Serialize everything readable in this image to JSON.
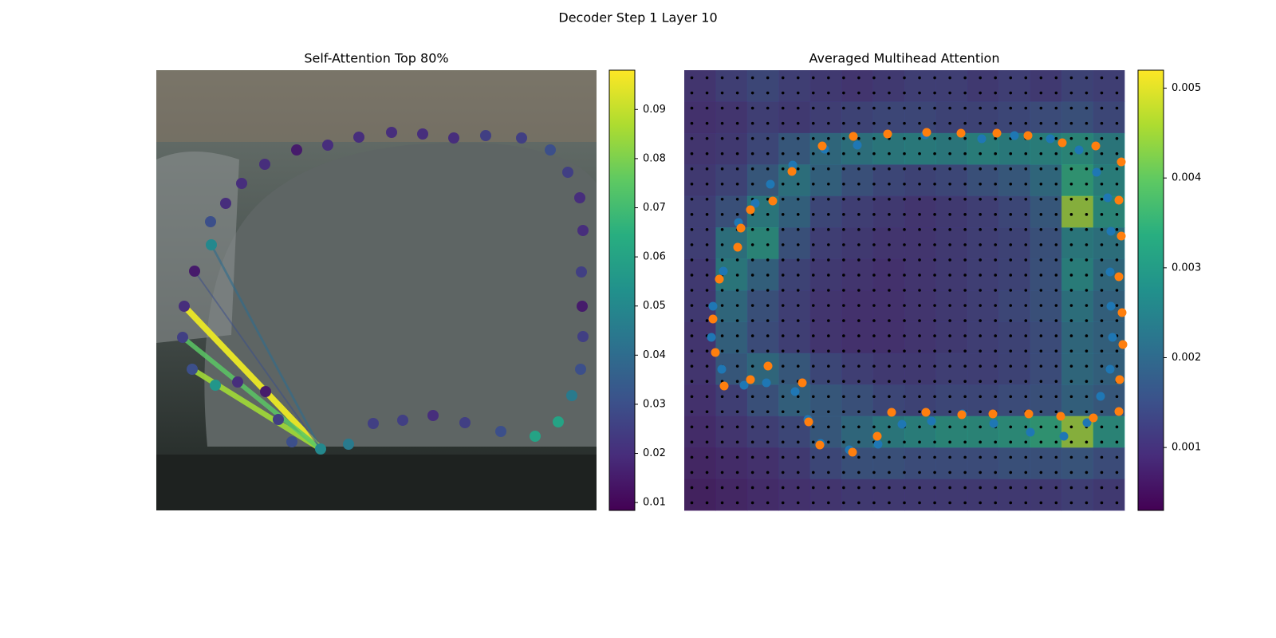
{
  "title": "Decoder Step 1 Layer 10",
  "chart_data": [
    {
      "type": "scatter",
      "title": "Self-Attention Top 80%",
      "xlim": [
        0,
        552
      ],
      "ylim": [
        552,
        0
      ],
      "x": [
        68,
        69,
        48,
        35,
        33,
        45,
        74,
        102,
        137,
        153,
        170,
        206,
        241,
        272,
        309,
        347,
        387,
        432,
        475,
        504,
        521,
        532,
        535,
        534,
        533,
        535,
        531,
        516,
        494,
        458,
        413,
        373,
        334,
        295,
        254,
        215,
        176,
        136,
        107,
        87
      ],
      "y": [
        190,
        219,
        252,
        296,
        335,
        375,
        395,
        391,
        403,
        438,
        466,
        475,
        469,
        443,
        439,
        433,
        442,
        453,
        459,
        441,
        408,
        375,
        334,
        296,
        253,
        201,
        160,
        128,
        100,
        85,
        82,
        85,
        80,
        78,
        84,
        94,
        100,
        118,
        142,
        167
      ],
      "values": [
        0.03,
        0.05,
        0.015,
        0.02,
        0.025,
        0.03,
        0.055,
        0.02,
        0.015,
        0.025,
        0.03,
        0.05,
        0.045,
        0.025,
        0.025,
        0.02,
        0.025,
        0.03,
        0.06,
        0.06,
        0.045,
        0.03,
        0.025,
        0.015,
        0.025,
        0.02,
        0.02,
        0.025,
        0.03,
        0.025,
        0.025,
        0.02,
        0.02,
        0.02,
        0.02,
        0.02,
        0.015,
        0.02,
        0.02,
        0.02
      ],
      "lines": {
        "source": 11,
        "targets": [
          3,
          5,
          4,
          1,
          2
        ],
        "values": [
          0.095,
          0.085,
          0.075,
          0.04,
          0.03
        ]
      },
      "colorbar": {
        "clim": [
          0.0084,
          0.098
        ],
        "ticks": [
          0.01,
          0.02,
          0.03,
          0.04,
          0.05,
          0.06,
          0.07,
          0.08,
          0.09
        ]
      }
    },
    {
      "type": "heatmap",
      "title": "Averaged Multihead Attention",
      "xlim": [
        0,
        552
      ],
      "ylim": [
        552,
        0
      ],
      "z": [
        [
          0.001,
          0.0012,
          0.0014,
          0.0012,
          0.0011,
          0.001,
          0.0011,
          0.0012,
          0.0012,
          0.0011,
          0.0012,
          0.0011,
          0.0013,
          0.0012
        ],
        [
          0.0009,
          0.001,
          0.0012,
          0.0011,
          0.0012,
          0.0013,
          0.0014,
          0.0014,
          0.0013,
          0.0013,
          0.0014,
          0.0015,
          0.0016,
          0.0014
        ],
        [
          0.001,
          0.0011,
          0.0014,
          0.0018,
          0.0022,
          0.0024,
          0.0026,
          0.0027,
          0.0026,
          0.0028,
          0.0027,
          0.0028,
          0.003,
          0.0026
        ],
        [
          0.0011,
          0.0013,
          0.0018,
          0.0024,
          0.002,
          0.0016,
          0.0014,
          0.0013,
          0.0014,
          0.0016,
          0.0018,
          0.0022,
          0.0034,
          0.0028
        ],
        [
          0.0012,
          0.0016,
          0.0026,
          0.002,
          0.0014,
          0.0012,
          0.0011,
          0.001,
          0.0011,
          0.0012,
          0.0014,
          0.0018,
          0.0045,
          0.003
        ],
        [
          0.0012,
          0.0024,
          0.003,
          0.0016,
          0.0012,
          0.0011,
          0.001,
          0.001,
          0.0011,
          0.0012,
          0.0013,
          0.0016,
          0.0026,
          0.0024
        ],
        [
          0.0011,
          0.0026,
          0.002,
          0.0013,
          0.0011,
          0.001,
          0.0009,
          0.001,
          0.0011,
          0.0012,
          0.0013,
          0.0016,
          0.0028,
          0.0022
        ],
        [
          0.0011,
          0.0022,
          0.0016,
          0.0012,
          0.001,
          0.0009,
          0.0009,
          0.001,
          0.0011,
          0.0012,
          0.0014,
          0.0016,
          0.0024,
          0.002
        ],
        [
          0.001,
          0.002,
          0.0015,
          0.0012,
          0.001,
          0.0009,
          0.0009,
          0.001,
          0.0011,
          0.0012,
          0.0013,
          0.0015,
          0.0022,
          0.002
        ],
        [
          0.001,
          0.0018,
          0.0022,
          0.0018,
          0.0014,
          0.0012,
          0.0011,
          0.0011,
          0.0012,
          0.0012,
          0.0013,
          0.0015,
          0.0022,
          0.002
        ],
        [
          0.0009,
          0.0012,
          0.0016,
          0.002,
          0.0018,
          0.0016,
          0.0014,
          0.0013,
          0.0014,
          0.0014,
          0.0015,
          0.0016,
          0.002,
          0.0018
        ],
        [
          0.0008,
          0.001,
          0.0012,
          0.0014,
          0.0018,
          0.0022,
          0.0026,
          0.0028,
          0.003,
          0.003,
          0.0031,
          0.0034,
          0.0045,
          0.003
        ],
        [
          0.0007,
          0.0008,
          0.0009,
          0.0011,
          0.0014,
          0.0016,
          0.0016,
          0.0015,
          0.0015,
          0.0015,
          0.0016,
          0.0016,
          0.0017,
          0.0015
        ],
        [
          0.0006,
          0.0007,
          0.0008,
          0.0009,
          0.001,
          0.0011,
          0.0011,
          0.0011,
          0.0011,
          0.0011,
          0.0011,
          0.0011,
          0.0012,
          0.0011
        ]
      ],
      "series": [
        {
          "color": "#1f77b4",
          "x": [
            176,
            217,
            302,
            373,
            414,
            459,
            495,
            517,
            531,
            535,
            534,
            535,
            537,
            534,
            522,
            505,
            476,
            434,
            388,
            349,
            310,
            273,
            243,
            207,
            171,
            155,
            139,
            103,
            75,
            47,
            34,
            36,
            49,
            68,
            89,
            108,
            136
          ],
          "y": [
            99,
            94,
            81,
            86,
            82,
            86,
            100,
            128,
            160,
            202,
            253,
            296,
            335,
            375,
            409,
            442,
            459,
            454,
            443,
            431,
            440,
            444,
            469,
            476,
            468,
            438,
            403,
            392,
            395,
            375,
            335,
            296,
            252,
            191,
            167,
            143,
            119
          ]
        },
        {
          "color": "#ff7f0e",
          "x": [
            173,
            212,
            255,
            304,
            347,
            392,
            431,
            474,
            516,
            548,
            545,
            548,
            545,
            549,
            550,
            546,
            545,
            513,
            472,
            432,
            387,
            348,
            303,
            260,
            242,
            211,
            170,
            156,
            148,
            105,
            83,
            50,
            39,
            36,
            44,
            67,
            71,
            83,
            111,
            135
          ],
          "y": [
            95,
            83,
            80,
            78,
            79,
            79,
            82,
            91,
            95,
            115,
            163,
            208,
            259,
            304,
            344,
            388,
            428,
            436,
            434,
            431,
            431,
            432,
            429,
            429,
            459,
            479,
            470,
            441,
            392,
            371,
            388,
            396,
            354,
            312,
            262,
            222,
            198,
            175,
            164,
            127
          ]
        }
      ],
      "colorbar": {
        "clim": [
          0.0003,
          0.0052
        ],
        "ticks": [
          0.001,
          0.002,
          0.003,
          0.004,
          0.005
        ]
      }
    }
  ]
}
